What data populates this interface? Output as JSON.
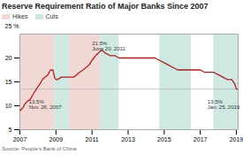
{
  "chart_data": {
    "type": "line",
    "title": "Reserve Requirement Ratio of Major Banks Since 2007",
    "source": "Source: People's Bank of China",
    "ylabel": "25 %",
    "x": [
      2007.0,
      2007.15,
      2007.3,
      2007.45,
      2007.6,
      2007.75,
      2007.917,
      2008.0,
      2008.1,
      2008.25,
      2008.4,
      2008.55,
      2008.7,
      2008.83,
      2008.92,
      2009.0,
      2009.1,
      2009.3,
      2009.5,
      2009.75,
      2010.0,
      2010.15,
      2010.3,
      2010.5,
      2010.67,
      2010.83,
      2011.0,
      2011.1,
      2011.2,
      2011.35,
      2011.47,
      2011.6,
      2011.75,
      2012.0,
      2012.25,
      2012.5,
      2013.0,
      2014.0,
      2014.5,
      2014.75,
      2015.0,
      2015.25,
      2015.5,
      2015.75,
      2016.0,
      2016.5,
      2017.0,
      2017.25,
      2017.5,
      2017.75,
      2018.0,
      2018.25,
      2018.5,
      2018.75,
      2018.917,
      2019.0,
      2019.083
    ],
    "values": [
      9.0,
      9.5,
      10.5,
      11.0,
      11.5,
      12.5,
      13.5,
      14.0,
      14.5,
      15.5,
      16.0,
      16.5,
      17.5,
      17.5,
      16.0,
      15.5,
      15.5,
      16.0,
      16.0,
      16.0,
      16.0,
      16.5,
      17.0,
      17.5,
      18.0,
      18.5,
      19.5,
      20.0,
      20.5,
      21.0,
      21.5,
      21.5,
      21.0,
      20.5,
      20.5,
      20.0,
      20.0,
      20.0,
      20.0,
      19.5,
      19.0,
      18.5,
      18.0,
      17.5,
      17.5,
      17.5,
      17.5,
      17.0,
      17.0,
      17.0,
      16.5,
      16.0,
      15.5,
      15.5,
      14.5,
      13.5,
      13.5
    ],
    "color": "#aa2222",
    "xlim": [
      2007,
      2019.1
    ],
    "xticks": [
      2007,
      2009,
      2011,
      2013,
      2015,
      2017,
      2019
    ],
    "ylim": [
      5,
      25
    ],
    "yticks": [
      5,
      10,
      15,
      20
    ],
    "bands": [
      {
        "name": "Hikes",
        "color": "#f2d8d5",
        "ranges": [
          [
            2007.0,
            2008.92
          ],
          [
            2009.75,
            2011.47
          ]
        ]
      },
      {
        "name": "Cuts",
        "color": "#cfe8e2",
        "ranges": [
          [
            2008.92,
            2009.75
          ],
          [
            2011.47,
            2012.5
          ],
          [
            2014.75,
            2016.5
          ],
          [
            2017.75,
            2019.1
          ]
        ]
      }
    ],
    "hline": {
      "y": 13.5,
      "color": "#aaaaaa"
    },
    "annotations": [
      {
        "text": "13.5%\nNov. 26, 2007",
        "x": 2007.5,
        "y": 11.2
      },
      {
        "text": "21.5%\nJune 20, 2011",
        "x": 2011.0,
        "y": 23.5
      },
      {
        "text": "13.5%\nJan. 25, 2019",
        "x": 2017.4,
        "y": 11.2
      }
    ],
    "legend": "upper left",
    "grid": false
  }
}
